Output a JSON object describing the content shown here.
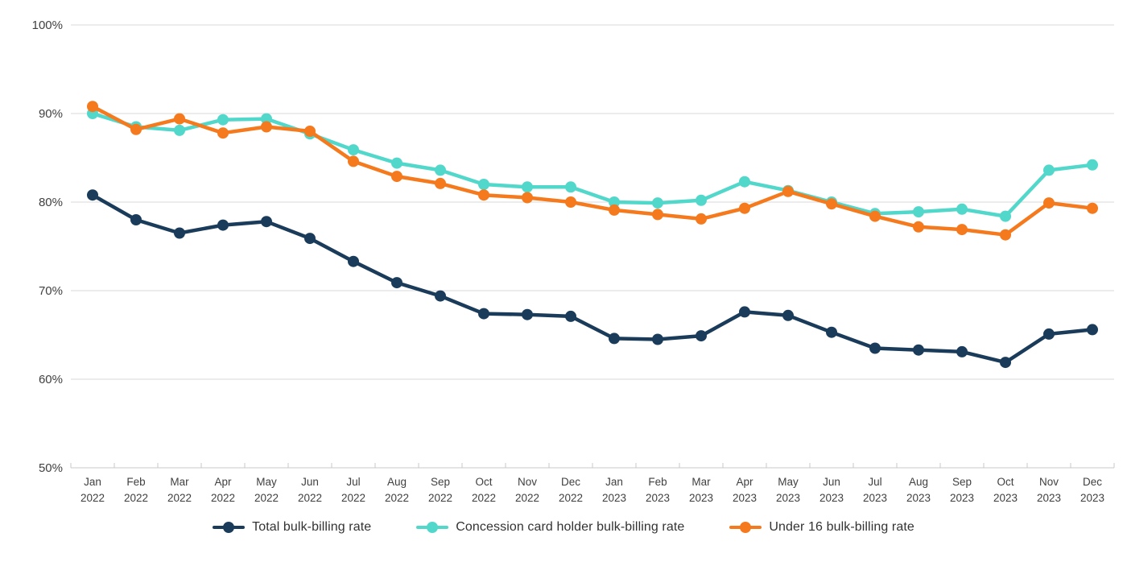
{
  "chart_data": {
    "type": "line",
    "title": "",
    "xlabel": "",
    "ylabel": "",
    "ylim": [
      50,
      100
    ],
    "grid": true,
    "legend_position": "bottom",
    "y_tick_values": [
      100,
      90,
      80,
      70,
      60,
      50
    ],
    "y_tick_labels": [
      "100%",
      "90%",
      "80%",
      "70%",
      "60%",
      "50%"
    ],
    "categories": [
      "Jan 2022",
      "Feb 2022",
      "Mar 2022",
      "Apr 2022",
      "May 2022",
      "Jun 2022",
      "Jul 2022",
      "Aug 2022",
      "Sep 2022",
      "Oct 2022",
      "Nov 2022",
      "Dec 2022",
      "Jan 2023",
      "Feb 2023",
      "Mar 2023",
      "Apr 2023",
      "May 2023",
      "Jun 2023",
      "Jul 2023",
      "Aug 2023",
      "Sep 2023",
      "Oct 2023",
      "Nov 2023",
      "Dec 2023"
    ],
    "series": [
      {
        "name": "Total bulk-billing rate",
        "color": "#1a3c5a",
        "values": [
          80.8,
          78.0,
          76.5,
          77.4,
          77.8,
          75.9,
          73.3,
          70.9,
          69.4,
          67.4,
          67.3,
          67.1,
          64.6,
          64.5,
          64.9,
          67.6,
          67.2,
          65.3,
          63.5,
          63.3,
          63.1,
          61.9,
          65.1,
          65.6
        ]
      },
      {
        "name": "Concession card holder bulk-billing rate",
        "color": "#52d7cb",
        "values": [
          90.0,
          88.5,
          88.1,
          89.3,
          89.4,
          87.7,
          85.9,
          84.4,
          83.6,
          82.0,
          81.7,
          81.7,
          80.0,
          79.9,
          80.2,
          82.3,
          81.3,
          80.0,
          78.7,
          78.9,
          79.2,
          78.4,
          83.6,
          84.2
        ]
      },
      {
        "name": "Under 16 bulk-billing rate",
        "color": "#f5791d",
        "values": [
          90.8,
          88.2,
          89.4,
          87.8,
          88.5,
          88.0,
          84.6,
          82.9,
          82.1,
          80.8,
          80.5,
          80.0,
          79.1,
          78.6,
          78.1,
          79.3,
          81.2,
          79.8,
          78.4,
          77.2,
          76.9,
          76.3,
          79.9,
          79.3
        ]
      }
    ]
  }
}
